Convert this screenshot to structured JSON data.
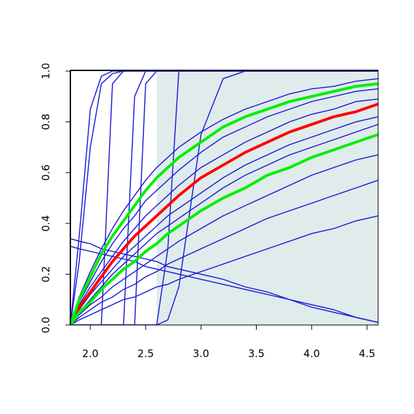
{
  "chart_data": {
    "type": "line",
    "x": [
      1.82,
      1.9,
      2.0,
      2.1,
      2.2,
      2.3,
      2.4,
      2.5,
      2.6,
      2.7,
      2.8,
      3.0,
      3.2,
      3.4,
      3.6,
      3.8,
      4.0,
      4.2,
      4.4,
      4.6
    ],
    "xlim": [
      1.82,
      4.6
    ],
    "ylim": [
      0,
      1
    ],
    "xticks": [
      {
        "value": 2,
        "label": "2.0"
      },
      {
        "value": 2.5,
        "label": "2.5"
      },
      {
        "value": 3,
        "label": "3.0"
      },
      {
        "value": 3.5,
        "label": "3.5"
      },
      {
        "value": 4,
        "label": "4.0"
      },
      {
        "value": 4.5,
        "label": "4.5"
      }
    ],
    "yticks": [
      {
        "value": 0,
        "label": "0.0"
      },
      {
        "value": 0.2,
        "label": "0.2"
      },
      {
        "value": 0.4,
        "label": "0.4"
      },
      {
        "value": 0.6,
        "label": "0.6"
      },
      {
        "value": 0.8,
        "label": "0.8"
      },
      {
        "value": 1,
        "label": "1.0"
      }
    ],
    "shade": {
      "xlim": [
        2.6,
        4.6
      ],
      "color": "#e0ebeb"
    },
    "series": [
      {
        "color": "#1f1fd6",
        "line_width": 1.5,
        "values": [
          0,
          0.35,
          0.85,
          0.98,
          1,
          1,
          1,
          1,
          1,
          1,
          1,
          1,
          1,
          1,
          1,
          1,
          1,
          1,
          1,
          1
        ]
      },
      {
        "color": "#1f1fd6",
        "line_width": 1.5,
        "values": [
          0,
          0.25,
          0.7,
          0.95,
          0.99,
          1,
          1,
          1,
          1,
          1,
          1,
          1,
          1,
          1,
          1,
          1,
          1,
          1,
          1,
          1
        ]
      },
      {
        "color": "#1f1fd6",
        "line_width": 1.5,
        "values": [
          0,
          0,
          0,
          0,
          0.95,
          1,
          1,
          1,
          1,
          1,
          1,
          1,
          1,
          1,
          1,
          1,
          1,
          1,
          1,
          1
        ]
      },
      {
        "color": "#1f1fd6",
        "line_width": 1.5,
        "values": [
          0,
          0,
          0,
          0,
          0,
          0,
          0.9,
          1,
          1,
          1,
          1,
          1,
          1,
          1,
          1,
          1,
          1,
          1,
          1,
          1
        ]
      },
      {
        "color": "#1f1fd6",
        "line_width": 1.5,
        "values": [
          0,
          0,
          0,
          0,
          0,
          0,
          0,
          0.95,
          1,
          1,
          1,
          1,
          1,
          1,
          1,
          1,
          1,
          1,
          1,
          1
        ]
      },
      {
        "color": "#1f1fd6",
        "line_width": 1.5,
        "values": [
          0,
          0,
          0,
          0,
          0,
          0,
          0,
          0,
          0,
          0.3,
          1,
          1,
          1,
          1,
          1,
          1,
          1,
          1,
          1,
          1
        ]
      },
      {
        "color": "#1f1fd6",
        "line_width": 1.5,
        "values": [
          0,
          0,
          0,
          0,
          0,
          0,
          0,
          0,
          0,
          0.02,
          0.15,
          0.75,
          0.97,
          1,
          1,
          1,
          1,
          1,
          1,
          1
        ]
      },
      {
        "color": "#1f1fd6",
        "line_width": 1.5,
        "values": [
          0.34,
          0.33,
          0.32,
          0.3,
          0.29,
          0.28,
          0.27,
          0.26,
          0.25,
          0.23,
          0.22,
          0.2,
          0.18,
          0.15,
          0.13,
          0.1,
          0.08,
          0.06,
          0.03,
          0.01
        ]
      },
      {
        "color": "#1f1fd6",
        "line_width": 1.5,
        "values": [
          0.31,
          0.3,
          0.29,
          0.28,
          0.27,
          0.26,
          0.25,
          0.23,
          0.22,
          0.21,
          0.2,
          0.18,
          0.16,
          0.14,
          0.12,
          0.1,
          0.07,
          0.05,
          0.03,
          0.01
        ]
      },
      {
        "color": "#1f1fd6",
        "line_width": 1.5,
        "values": [
          0,
          0.02,
          0.04,
          0.06,
          0.08,
          0.1,
          0.11,
          0.13,
          0.15,
          0.16,
          0.18,
          0.21,
          0.24,
          0.27,
          0.3,
          0.33,
          0.36,
          0.38,
          0.41,
          0.43
        ]
      },
      {
        "color": "#1f1fd6",
        "line_width": 1.5,
        "values": [
          0,
          0.03,
          0.06,
          0.09,
          0.11,
          0.14,
          0.16,
          0.19,
          0.21,
          0.24,
          0.26,
          0.3,
          0.34,
          0.38,
          0.42,
          0.45,
          0.48,
          0.51,
          0.54,
          0.57
        ]
      },
      {
        "color": "#1f1fd6",
        "line_width": 1.5,
        "values": [
          0,
          0.04,
          0.08,
          0.11,
          0.15,
          0.18,
          0.21,
          0.24,
          0.27,
          0.3,
          0.33,
          0.38,
          0.43,
          0.47,
          0.51,
          0.55,
          0.59,
          0.62,
          0.65,
          0.67
        ]
      },
      {
        "color": "#1f1fd6",
        "line_width": 1.5,
        "values": [
          0,
          0.05,
          0.1,
          0.15,
          0.2,
          0.24,
          0.28,
          0.32,
          0.36,
          0.39,
          0.42,
          0.48,
          0.54,
          0.59,
          0.63,
          0.67,
          0.7,
          0.73,
          0.76,
          0.79
        ]
      },
      {
        "color": "#1f1fd6",
        "line_width": 1.5,
        "values": [
          0,
          0.06,
          0.12,
          0.17,
          0.22,
          0.27,
          0.31,
          0.35,
          0.39,
          0.43,
          0.46,
          0.52,
          0.58,
          0.63,
          0.67,
          0.71,
          0.74,
          0.77,
          0.8,
          0.82
        ]
      },
      {
        "color": "#1f1fd6",
        "line_width": 1.5,
        "values": [
          0,
          0.08,
          0.15,
          0.21,
          0.27,
          0.33,
          0.38,
          0.43,
          0.47,
          0.51,
          0.55,
          0.62,
          0.67,
          0.72,
          0.76,
          0.8,
          0.83,
          0.85,
          0.88,
          0.89
        ]
      },
      {
        "color": "#1f1fd6",
        "line_width": 1.5,
        "values": [
          0,
          0.09,
          0.17,
          0.25,
          0.32,
          0.38,
          0.43,
          0.49,
          0.53,
          0.57,
          0.61,
          0.68,
          0.74,
          0.78,
          0.82,
          0.85,
          0.88,
          0.9,
          0.92,
          0.93
        ]
      },
      {
        "color": "#1f1fd6",
        "line_width": 1.5,
        "values": [
          0,
          0.11,
          0.21,
          0.3,
          0.38,
          0.45,
          0.51,
          0.57,
          0.62,
          0.66,
          0.7,
          0.76,
          0.81,
          0.85,
          0.88,
          0.91,
          0.93,
          0.94,
          0.96,
          0.97
        ]
      },
      {
        "color": "#ff0000",
        "line_width": 4,
        "values": [
          0,
          0.07,
          0.13,
          0.19,
          0.25,
          0.3,
          0.35,
          0.39,
          0.43,
          0.47,
          0.51,
          0.58,
          0.63,
          0.68,
          0.72,
          0.76,
          0.79,
          0.82,
          0.84,
          0.87
        ]
      },
      {
        "color": "#00ee00",
        "line_width": 4,
        "values": [
          0,
          0.1,
          0.19,
          0.28,
          0.35,
          0.41,
          0.47,
          0.53,
          0.58,
          0.62,
          0.66,
          0.72,
          0.78,
          0.82,
          0.85,
          0.88,
          0.9,
          0.92,
          0.94,
          0.95
        ]
      },
      {
        "color": "#00ee00",
        "line_width": 4,
        "values": [
          0,
          0.05,
          0.09,
          0.14,
          0.18,
          0.22,
          0.25,
          0.29,
          0.32,
          0.36,
          0.39,
          0.45,
          0.5,
          0.54,
          0.59,
          0.62,
          0.66,
          0.69,
          0.72,
          0.75
        ]
      }
    ]
  }
}
